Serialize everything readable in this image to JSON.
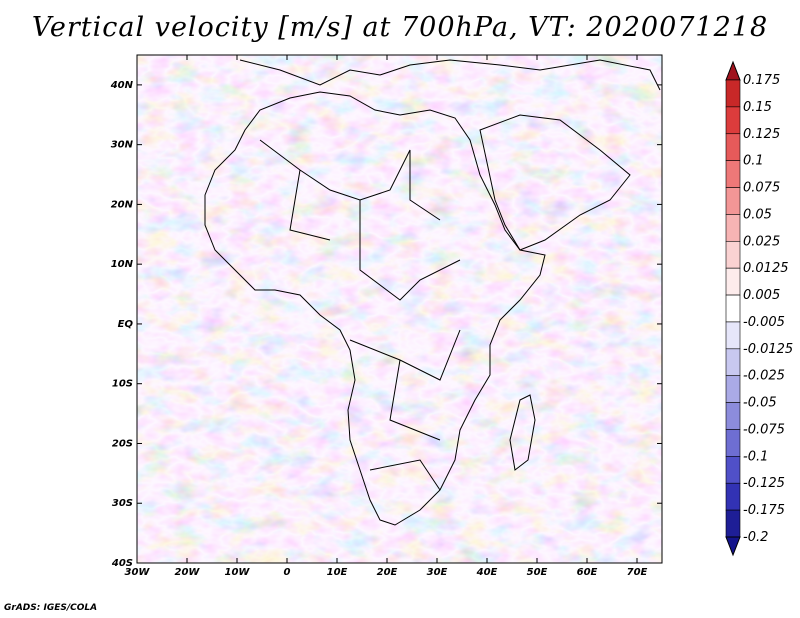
{
  "title": "Vertical velocity [m/s] at 700hPa, VT: 2020071218",
  "credit": "GrADS: IGES/COLA",
  "map": {
    "region": "Africa",
    "lon_range": [
      -30,
      75
    ],
    "lat_range": [
      -40,
      45
    ],
    "lon_ticks": [
      {
        "value": -30,
        "label": "30W"
      },
      {
        "value": -20,
        "label": "20W"
      },
      {
        "value": -10,
        "label": "10W"
      },
      {
        "value": 0,
        "label": "0"
      },
      {
        "value": 10,
        "label": "10E"
      },
      {
        "value": 20,
        "label": "20E"
      },
      {
        "value": 30,
        "label": "30E"
      },
      {
        "value": 40,
        "label": "40E"
      },
      {
        "value": 50,
        "label": "50E"
      },
      {
        "value": 60,
        "label": "60E"
      },
      {
        "value": 70,
        "label": "70E"
      }
    ],
    "lat_ticks": [
      {
        "value": 40,
        "label": "40N"
      },
      {
        "value": 30,
        "label": "30N"
      },
      {
        "value": 20,
        "label": "20N"
      },
      {
        "value": 10,
        "label": "10N"
      },
      {
        "value": 0,
        "label": "EQ"
      },
      {
        "value": -10,
        "label": "10S"
      },
      {
        "value": -20,
        "label": "20S"
      },
      {
        "value": -30,
        "label": "30S"
      },
      {
        "value": -40,
        "label": "40S"
      }
    ]
  },
  "colorbar": {
    "levels": [
      "0.175",
      "0.15",
      "0.125",
      "0.1",
      "0.075",
      "0.05",
      "0.025",
      "0.0125",
      "0.005",
      "-0.005",
      "-0.0125",
      "-0.025",
      "-0.05",
      "-0.075",
      "-0.1",
      "-0.125",
      "-0.175",
      "-0.2"
    ],
    "colors": [
      "#a0141e",
      "#c82828",
      "#dc3c3c",
      "#e65a5a",
      "#ee7878",
      "#f39696",
      "#f7b4b4",
      "#fad2d2",
      "#fdecec",
      "#ffffff",
      "#e6e6fa",
      "#c8c8f0",
      "#aaaae6",
      "#8c8cdc",
      "#6e6ed2",
      "#5050c8",
      "#3232b4",
      "#1e1e96",
      "#14148c"
    ]
  }
}
